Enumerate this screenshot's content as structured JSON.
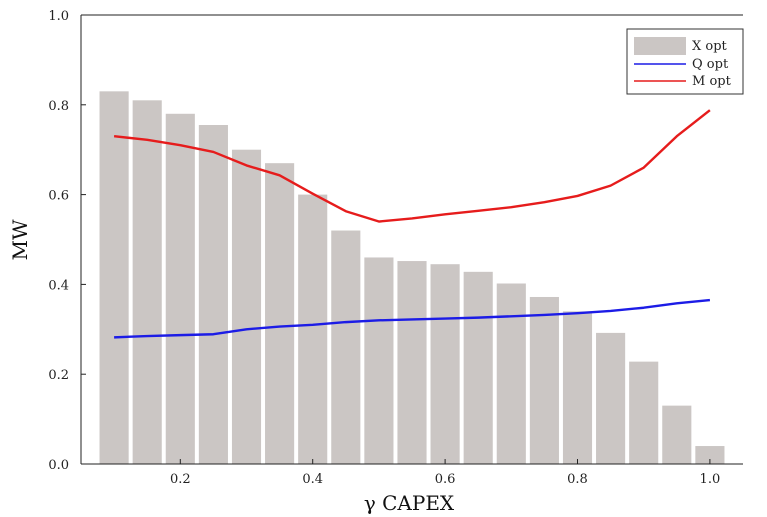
{
  "chart_data": {
    "type": "bar",
    "xlabel": "γ CAPEX",
    "ylabel": "MW",
    "xlim": [
      0.05,
      1.05
    ],
    "ylim": [
      0.0,
      1.0
    ],
    "x_ticks": [
      "0.2",
      "0.4",
      "0.6",
      "0.8",
      "1.0"
    ],
    "y_ticks": [
      "0.0",
      "0.2",
      "0.4",
      "0.6",
      "0.8",
      "1.0"
    ],
    "x": [
      0.1,
      0.15,
      0.2,
      0.25,
      0.3,
      0.35,
      0.4,
      0.45,
      0.5,
      0.55,
      0.6,
      0.65,
      0.7,
      0.75,
      0.8,
      0.85,
      0.9,
      0.95,
      1.0
    ],
    "series": [
      {
        "name": "X opt",
        "kind": "bar",
        "color": "#cbc6c4",
        "values": [
          0.83,
          0.81,
          0.78,
          0.755,
          0.7,
          0.67,
          0.6,
          0.52,
          0.46,
          0.452,
          0.445,
          0.428,
          0.402,
          0.372,
          0.34,
          0.292,
          0.228,
          0.13,
          0.04
        ]
      },
      {
        "name": "Q opt",
        "kind": "line",
        "color": "#1c1ce6",
        "values": [
          0.282,
          0.285,
          0.287,
          0.289,
          0.3,
          0.306,
          0.31,
          0.316,
          0.32,
          0.322,
          0.324,
          0.326,
          0.329,
          0.332,
          0.336,
          0.341,
          0.348,
          0.358,
          0.365
        ]
      },
      {
        "name": "M opt",
        "kind": "line",
        "color": "#e61c1c",
        "values": [
          0.73,
          0.722,
          0.71,
          0.695,
          0.665,
          0.643,
          0.602,
          0.563,
          0.54,
          0.547,
          0.556,
          0.564,
          0.572,
          0.583,
          0.597,
          0.62,
          0.66,
          0.73,
          0.788
        ]
      }
    ],
    "grid": false,
    "legend_position": "top-right"
  }
}
